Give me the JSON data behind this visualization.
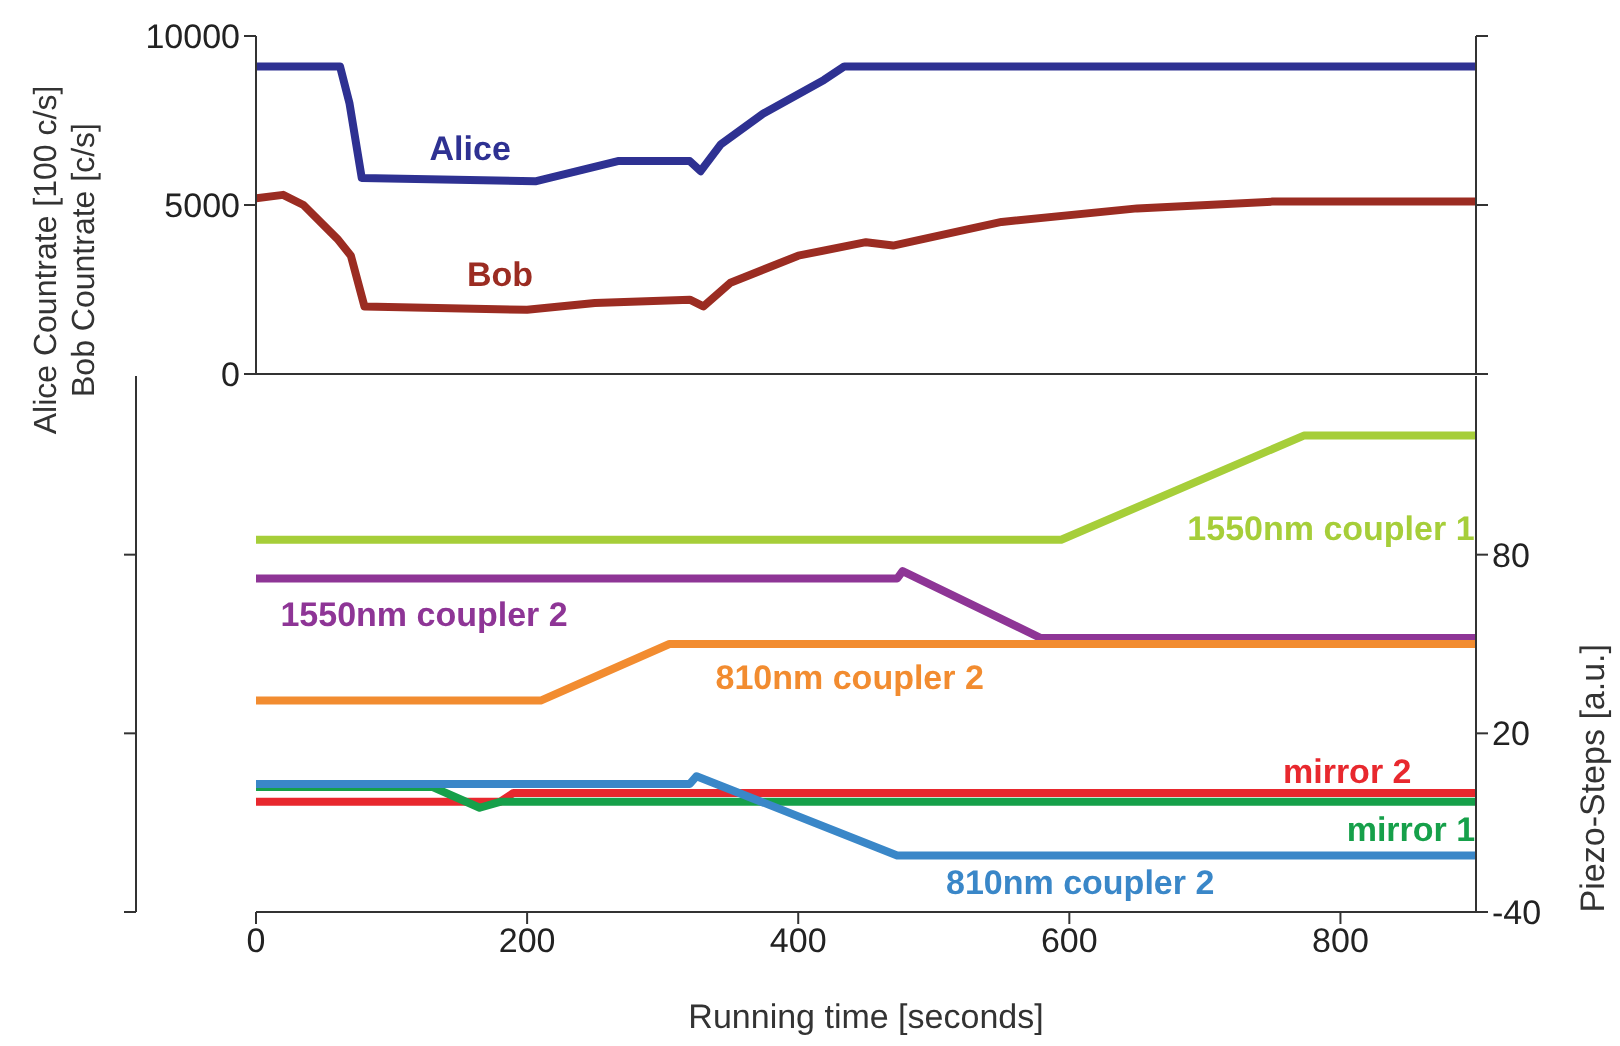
{
  "chart_data": [
    {
      "type": "line",
      "ylabel": "Alice Countrate [100 c/s]\nBob Countrate [c/s]",
      "xlim": [
        0,
        900
      ],
      "xticks": [
        0,
        200,
        400,
        600,
        800
      ],
      "ylim": [
        0,
        10000
      ],
      "yticks": [
        0,
        5000,
        10000
      ],
      "tick_labels": "y",
      "series": [
        {
          "name": "Alice",
          "color": "#2e3192",
          "x": [
            0,
            62,
            69,
            78,
            206,
            267,
            320,
            328,
            343,
            374,
            419,
            434,
            900
          ],
          "values": [
            9100,
            9100,
            8000,
            5800,
            5700,
            6300,
            6300,
            6000,
            6800,
            7700,
            8700,
            9100,
            9100
          ]
        },
        {
          "name": "Bob",
          "color": "#9b2c22",
          "x": [
            0,
            20,
            35,
            60,
            70,
            80,
            200,
            250,
            320,
            330,
            350,
            400,
            450,
            470,
            550,
            650,
            750,
            900
          ],
          "values": [
            5200,
            5300,
            5000,
            4000,
            3500,
            2000,
            1900,
            2100,
            2200,
            2000,
            2700,
            3500,
            3900,
            3800,
            4500,
            4900,
            5100,
            5100
          ]
        }
      ]
    },
    {
      "type": "line",
      "xlabel": "Running time [seconds]",
      "xlim": [
        0,
        900
      ],
      "xticks": [
        0,
        200,
        400,
        600,
        800
      ],
      "y2label": "Piezo-Steps [a.u.]",
      "y2lim": [
        -40,
        140
      ],
      "y2ticks": [
        -40,
        20,
        80
      ],
      "series": [
        {
          "name": "1550nm coupler 1",
          "color": "#a6ce39",
          "axis": "y2",
          "x": [
            0,
            594,
            773,
            900
          ],
          "values": [
            85,
            85,
            120,
            120
          ]
        },
        {
          "name": "1550nm coupler 2",
          "color": "#8e3596",
          "axis": "y2",
          "x": [
            0,
            473,
            477,
            579,
            900
          ],
          "values": [
            72,
            72,
            74.5,
            52,
            52
          ]
        },
        {
          "name": "810nm coupler 2",
          "color": "#f28c30",
          "axis": "y2",
          "x": [
            0,
            210,
            305,
            900
          ],
          "values": [
            31,
            31,
            50,
            50
          ]
        },
        {
          "name": "mirror 2",
          "color": "#e8282e",
          "axis": "y2",
          "x": [
            0,
            180,
            190,
            900
          ],
          "values": [
            -3,
            -3,
            0,
            0
          ]
        },
        {
          "name": "mirror 1",
          "color": "#16a04a",
          "axis": "y2",
          "x": [
            0,
            130,
            165,
            180,
            900
          ],
          "values": [
            2,
            2,
            -5,
            -3,
            -3
          ]
        },
        {
          "name": "810nm coupler 2",
          "color": "#3a87c8",
          "axis": "y2",
          "x": [
            0,
            320,
            325,
            473,
            900
          ],
          "values": [
            3,
            3,
            5.6,
            -21,
            -21
          ]
        }
      ]
    }
  ]
}
